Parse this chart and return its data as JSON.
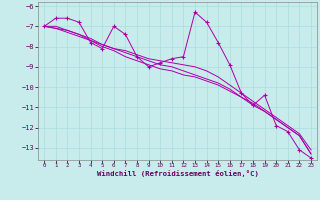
{
  "xlabel": "Windchill (Refroidissement éolien,°C)",
  "bg_color": "#c8ecec",
  "grid_color": "#aadddd",
  "line_color": "#aa00aa",
  "x": [
    0,
    1,
    2,
    3,
    4,
    5,
    6,
    7,
    8,
    9,
    10,
    11,
    12,
    13,
    14,
    15,
    16,
    17,
    18,
    19,
    20,
    21,
    22,
    23
  ],
  "series1": [
    -7.0,
    -6.6,
    -6.6,
    -6.8,
    -7.8,
    -8.1,
    -7.0,
    -7.4,
    -8.5,
    -9.0,
    -8.8,
    -8.6,
    -8.5,
    -6.3,
    -6.8,
    -7.8,
    -8.9,
    -10.3,
    -10.9,
    -10.4,
    -11.9,
    -12.2,
    -13.1,
    -13.5
  ],
  "series2": [
    -7.0,
    -7.1,
    -7.3,
    -7.5,
    -7.7,
    -7.9,
    -8.1,
    -8.2,
    -8.4,
    -8.6,
    -8.7,
    -8.8,
    -8.9,
    -9.0,
    -9.2,
    -9.5,
    -9.9,
    -10.3,
    -10.7,
    -11.1,
    -11.5,
    -11.9,
    -12.3,
    -13.1
  ],
  "series3": [
    -7.0,
    -7.1,
    -7.2,
    -7.4,
    -7.6,
    -7.9,
    -8.1,
    -8.3,
    -8.5,
    -8.7,
    -8.9,
    -9.0,
    -9.2,
    -9.4,
    -9.6,
    -9.8,
    -10.1,
    -10.5,
    -10.9,
    -11.2,
    -11.6,
    -12.0,
    -12.4,
    -13.3
  ],
  "series4": [
    -7.0,
    -7.0,
    -7.2,
    -7.4,
    -7.7,
    -8.0,
    -8.2,
    -8.5,
    -8.7,
    -8.9,
    -9.1,
    -9.2,
    -9.4,
    -9.5,
    -9.7,
    -9.9,
    -10.2,
    -10.5,
    -10.8,
    -11.2,
    -11.6,
    -12.0,
    -12.4,
    -13.3
  ],
  "ylim": [
    -13.6,
    -5.8
  ],
  "xlim": [
    -0.5,
    23.5
  ],
  "yticks": [
    -13,
    -12,
    -11,
    -10,
    -9,
    -8,
    -7,
    -6
  ],
  "xticks": [
    0,
    1,
    2,
    3,
    4,
    5,
    6,
    7,
    8,
    9,
    10,
    11,
    12,
    13,
    14,
    15,
    16,
    17,
    18,
    19,
    20,
    21,
    22,
    23
  ]
}
